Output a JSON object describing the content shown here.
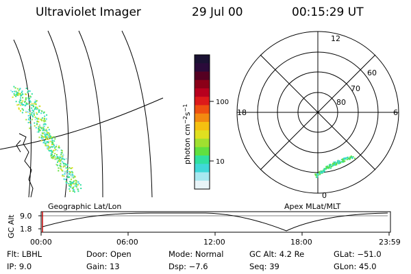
{
  "header": {
    "instrument": "Ultraviolet Imager",
    "date": "29 Jul 00",
    "time": "00:15:29 UT"
  },
  "colorbar": {
    "label_html": "photon cm<tspan dy='-4' font-size='8'>−2</tspan><tspan dy='4'>s</tspan><tspan dy='-4' font-size='8'>−1</tspan>",
    "ticks": [
      "100",
      "10"
    ],
    "colors": [
      "#1a1233",
      "#2a0a3a",
      "#550022",
      "#8b0018",
      "#b8001e",
      "#dd1a1a",
      "#ee5010",
      "#f28a10",
      "#f5c010",
      "#e0e020",
      "#a0e030",
      "#60e040",
      "#30e0a0",
      "#40d8d8",
      "#a8e8f0",
      "#e8f4f8"
    ]
  },
  "polar": {
    "mlt_labels": {
      "top": "12",
      "left": "18",
      "right": "6",
      "bottom": "0"
    },
    "lat_labels": [
      "60",
      "70",
      "80"
    ]
  },
  "timeline": {
    "left_title": "Geographic Lat/Lon",
    "right_title": "Apex MLat/MLT",
    "axis_label": "GC Alt",
    "y_ticks": [
      "9.0",
      "1.8"
    ],
    "x_ticks": [
      "00:00",
      "06:00",
      "12:00",
      "18:00",
      "23:59"
    ]
  },
  "info": {
    "row1": {
      "filter": "Flt: LBHL",
      "door": "Door: Open",
      "mode": "Mode: Normal",
      "gc_alt": "GC Alt: 4.2 Re",
      "glat": "GLat: −51.0"
    },
    "row2": {
      "ip": "IP: 9.0",
      "gain": "Gain: 13",
      "dsp": "Dsp:   −7.6",
      "seq": "Seq: 39",
      "glon": "GLon: 45.0"
    }
  }
}
